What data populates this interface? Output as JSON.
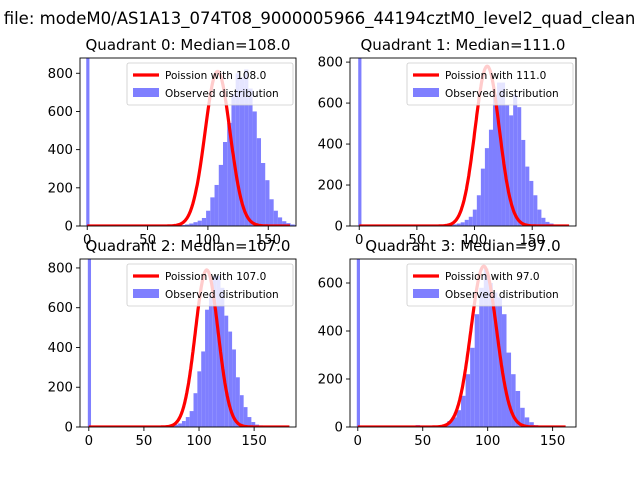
{
  "figure_title": "h file: modeM0/AS1A13_074T08_9000005966_44194cztM0_level2_quad_clean",
  "colors": {
    "observed": "#7f7fff",
    "poisson": "#ff0000"
  },
  "chart_data": [
    {
      "type": "bar",
      "title": "Quadrant 0: Median=108.0",
      "xlim": [
        -6,
        173
      ],
      "ylim": [
        0,
        880
      ],
      "xticks": [
        0,
        50,
        100,
        150
      ],
      "yticks": [
        0,
        200,
        400,
        600,
        800
      ],
      "legend": [
        "Poission with 108.0",
        "Observed distribution"
      ],
      "legend_position": "top-right",
      "spike": {
        "x": 0,
        "height": 880
      },
      "hist_range": [
        60,
        165
      ],
      "bin_width": 3.5,
      "bin_counts": [
        2,
        1,
        3,
        3,
        4,
        5,
        8,
        13,
        20,
        28,
        42,
        80,
        150,
        215,
        320,
        440,
        540,
        690,
        800,
        780,
        820,
        720,
        600,
        460,
        330,
        240,
        140,
        80,
        45,
        25,
        15,
        8,
        4,
        2,
        1
      ],
      "poisson": {
        "mean": 108.0,
        "x_range": [
          0,
          168
        ],
        "peak": 810
      }
    },
    {
      "type": "bar",
      "title": "Quadrant 1: Median=111.0",
      "xlim": [
        -8,
        188
      ],
      "ylim": [
        0,
        820
      ],
      "xticks": [
        0,
        50,
        100,
        150
      ],
      "yticks": [
        0,
        200,
        400,
        600,
        800
      ],
      "legend": [
        "Poission with 111.0",
        "Observed distribution"
      ],
      "legend_position": "top-right",
      "spike": {
        "x": 0,
        "height": 820
      },
      "hist_range": [
        60,
        175
      ],
      "bin_width": 3.5,
      "bin_counts": [
        2,
        1,
        3,
        4,
        5,
        6,
        8,
        12,
        18,
        30,
        45,
        80,
        150,
        280,
        380,
        470,
        640,
        700,
        700,
        590,
        540,
        640,
        580,
        420,
        290,
        220,
        150,
        80,
        40,
        20,
        12,
        6,
        3,
        2,
        1,
        1,
        1,
        1
      ],
      "poisson": {
        "mean": 111.0,
        "x_range": [
          0,
          182
        ],
        "peak": 780
      }
    },
    {
      "type": "bar",
      "title": "Quadrant 2: Median=107.0",
      "xlim": [
        -8,
        188
      ],
      "ylim": [
        0,
        845
      ],
      "xticks": [
        0,
        50,
        100,
        150
      ],
      "yticks": [
        0,
        200,
        400,
        600,
        800
      ],
      "legend": [
        "Poission with 107.0",
        "Observed distribution"
      ],
      "legend_position": "top-right",
      "spike": {
        "x": 0,
        "height": 845
      },
      "hist_range": [
        60,
        180
      ],
      "bin_width": 3.5,
      "bin_counts": [
        1,
        2,
        3,
        5,
        8,
        12,
        18,
        30,
        50,
        80,
        170,
        280,
        380,
        590,
        660,
        760,
        760,
        700,
        560,
        480,
        390,
        250,
        160,
        100,
        50,
        25,
        12,
        8,
        4,
        2,
        1,
        1,
        1,
        1
      ],
      "poisson": {
        "mean": 107.0,
        "x_range": [
          0,
          182
        ],
        "peak": 790
      }
    },
    {
      "type": "bar",
      "title": "Quadrant 3: Median=97.0",
      "xlim": [
        -6,
        168
      ],
      "ylim": [
        0,
        700
      ],
      "xticks": [
        0,
        50,
        100,
        150
      ],
      "yticks": [
        0,
        200,
        400,
        600
      ],
      "legend": [
        "Poission with 97.0",
        "Observed distribution"
      ],
      "legend_position": "top-right",
      "spike": {
        "x": 0,
        "height": 700
      },
      "hist_range": [
        20,
        160
      ],
      "bin_width": 3.5,
      "bin_counts": [
        2,
        0,
        3,
        1,
        2,
        5,
        3,
        8,
        4,
        6,
        2,
        3,
        5,
        10,
        25,
        40,
        70,
        130,
        220,
        330,
        470,
        580,
        660,
        600,
        560,
        540,
        470,
        310,
        220,
        150,
        80,
        40,
        20,
        8,
        4,
        2,
        1,
        1,
        1,
        1
      ],
      "poisson": {
        "mean": 97.0,
        "x_range": [
          0,
          160
        ],
        "peak": 670
      }
    }
  ]
}
